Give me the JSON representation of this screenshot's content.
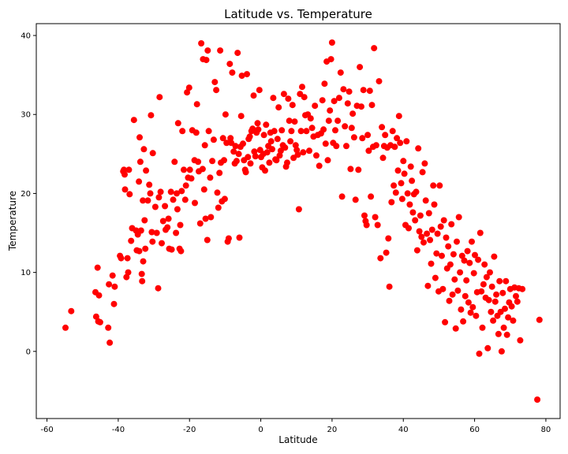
{
  "chart_data": {
    "type": "scatter",
    "title": "Latitude vs. Temperature",
    "xlabel": "Latitude",
    "ylabel": "Temperature",
    "xlim": [
      -63,
      84
    ],
    "ylim": [
      -8.5,
      41.5
    ],
    "xticks": [
      -60,
      -40,
      -20,
      0,
      20,
      40,
      60,
      80
    ],
    "yticks": [
      0,
      10,
      20,
      30,
      40
    ],
    "grid": false,
    "legend": "none",
    "marker_color": "#ff0000",
    "points": [
      [
        -54.8,
        3.0
      ],
      [
        -53.2,
        5.1
      ],
      [
        -46.4,
        7.5
      ],
      [
        -46.2,
        4.4
      ],
      [
        -45.8,
        10.6
      ],
      [
        -45.6,
        3.8
      ],
      [
        -45.4,
        7.1
      ],
      [
        -45.1,
        3.7
      ],
      [
        -42.8,
        3.0
      ],
      [
        -42.6,
        8.5
      ],
      [
        -42.4,
        1.1
      ],
      [
        -41.6,
        9.6
      ],
      [
        -41.2,
        6.0
      ],
      [
        -41.0,
        8.2
      ],
      [
        -39.5,
        12.1
      ],
      [
        -39.2,
        11.8
      ],
      [
        -38.6,
        22.8
      ],
      [
        -38.4,
        23.0
      ],
      [
        -38.2,
        22.4
      ],
      [
        -38.1,
        20.5
      ],
      [
        -37.7,
        9.4
      ],
      [
        -37.4,
        11.8
      ],
      [
        -37.2,
        10.0
      ],
      [
        -37.0,
        23.0
      ],
      [
        -36.8,
        19.9
      ],
      [
        -36.4,
        14.0
      ],
      [
        -36.1,
        15.6
      ],
      [
        -35.6,
        29.3
      ],
      [
        -35.0,
        15.3
      ],
      [
        -34.8,
        12.8
      ],
      [
        -34.5,
        14.8
      ],
      [
        -34.2,
        21.5
      ],
      [
        -34.1,
        12.7
      ],
      [
        -34.0,
        27.1
      ],
      [
        -33.8,
        24.0
      ],
      [
        -33.6,
        15.3
      ],
      [
        -33.4,
        9.8
      ],
      [
        -33.3,
        8.9
      ],
      [
        -33.1,
        19.1
      ],
      [
        -33.0,
        11.4
      ],
      [
        -32.8,
        25.6
      ],
      [
        -32.6,
        16.6
      ],
      [
        -32.4,
        13.0
      ],
      [
        -32.2,
        22.9
      ],
      [
        -31.7,
        19.1
      ],
      [
        -31.3,
        21.1
      ],
      [
        -31.0,
        20.0
      ],
      [
        -30.8,
        29.9
      ],
      [
        -30.6,
        15.1
      ],
      [
        -30.4,
        13.9
      ],
      [
        -30.3,
        25.1
      ],
      [
        -29.6,
        18.3
      ],
      [
        -29.2,
        15.0
      ],
      [
        -28.8,
        8.0
      ],
      [
        -28.6,
        19.5
      ],
      [
        -28.4,
        32.2
      ],
      [
        -28.1,
        20.2
      ],
      [
        -27.8,
        13.7
      ],
      [
        -27.4,
        16.5
      ],
      [
        -26.9,
        18.4
      ],
      [
        -26.7,
        15.4
      ],
      [
        -26.2,
        15.7
      ],
      [
        -25.9,
        16.8
      ],
      [
        -25.7,
        13.0
      ],
      [
        -25.2,
        20.2
      ],
      [
        -25.0,
        12.9
      ],
      [
        -24.6,
        19.2
      ],
      [
        -24.2,
        24.0
      ],
      [
        -23.8,
        15.0
      ],
      [
        -23.6,
        20.0
      ],
      [
        -23.4,
        18.0
      ],
      [
        -23.2,
        28.9
      ],
      [
        -22.8,
        13.0
      ],
      [
        -22.6,
        16.0
      ],
      [
        -22.4,
        12.7
      ],
      [
        -22.2,
        20.3
      ],
      [
        -22.0,
        27.9
      ],
      [
        -21.6,
        23.0
      ],
      [
        -21.2,
        19.2
      ],
      [
        -21.0,
        21.0
      ],
      [
        -20.7,
        32.8
      ],
      [
        -20.4,
        22.0
      ],
      [
        -20.1,
        33.4
      ],
      [
        -19.9,
        23.0
      ],
      [
        -19.5,
        21.9
      ],
      [
        -19.2,
        28.0
      ],
      [
        -18.6,
        24.2
      ],
      [
        -18.5,
        18.8
      ],
      [
        -18.1,
        27.7
      ],
      [
        -17.9,
        31.3
      ],
      [
        -17.6,
        24.0
      ],
      [
        -17.4,
        22.8
      ],
      [
        -17.0,
        16.2
      ],
      [
        -16.7,
        39.0
      ],
      [
        -16.3,
        23.1
      ],
      [
        -16.2,
        37.0
      ],
      [
        -15.9,
        20.5
      ],
      [
        -15.7,
        26.1
      ],
      [
        -15.5,
        16.8
      ],
      [
        -15.3,
        36.9
      ],
      [
        -15.0,
        14.1
      ],
      [
        -14.9,
        38.1
      ],
      [
        -14.6,
        27.9
      ],
      [
        -14.2,
        22.0
      ],
      [
        -14.0,
        17.0
      ],
      [
        -13.6,
        24.1
      ],
      [
        -13.2,
        26.8
      ],
      [
        -12.9,
        34.1
      ],
      [
        -12.5,
        33.1
      ],
      [
        -12.2,
        20.1
      ],
      [
        -11.9,
        18.2
      ],
      [
        -11.6,
        22.6
      ],
      [
        -11.4,
        38.1
      ],
      [
        -11.2,
        23.9
      ],
      [
        -10.9,
        19.0
      ],
      [
        -10.6,
        27.0
      ],
      [
        -10.3,
        24.2
      ],
      [
        -10.1,
        19.3
      ],
      [
        -9.9,
        30.0
      ],
      [
        -9.6,
        26.4
      ],
      [
        -9.3,
        13.9
      ],
      [
        -9.0,
        14.3
      ],
      [
        -8.7,
        36.4
      ],
      [
        -8.5,
        27.0
      ],
      [
        -8.3,
        26.4
      ],
      [
        -8.0,
        35.3
      ],
      [
        -7.6,
        25.3
      ],
      [
        -7.3,
        23.8
      ],
      [
        -7.1,
        26.0
      ],
      [
        -6.8,
        24.1
      ],
      [
        -6.5,
        37.8
      ],
      [
        -6.2,
        25.0
      ],
      [
        -6.0,
        14.4
      ],
      [
        -5.7,
        25.9
      ],
      [
        -5.5,
        29.8
      ],
      [
        -5.3,
        34.9
      ],
      [
        -5.0,
        26.3
      ],
      [
        -4.7,
        24.2
      ],
      [
        -4.4,
        23.0
      ],
      [
        -4.2,
        22.7
      ],
      [
        -3.9,
        35.1
      ],
      [
        -3.6,
        24.6
      ],
      [
        -3.4,
        26.9
      ],
      [
        -3.1,
        27.2
      ],
      [
        -2.9,
        23.8
      ],
      [
        -2.6,
        27.9
      ],
      [
        -2.3,
        28.2
      ],
      [
        -2.0,
        32.4
      ],
      [
        -1.8,
        25.3
      ],
      [
        -1.5,
        24.7
      ],
      [
        -1.2,
        27.7
      ],
      [
        -0.9,
        28.9
      ],
      [
        -0.7,
        28.1
      ],
      [
        -0.4,
        33.1
      ],
      [
        -0.2,
        25.5
      ],
      [
        0.1,
        24.6
      ],
      [
        0.4,
        23.3
      ],
      [
        0.7,
        25.0
      ],
      [
        0.9,
        27.4
      ],
      [
        1.2,
        22.9
      ],
      [
        1.5,
        28.7
      ],
      [
        1.8,
        25.2
      ],
      [
        2.1,
        26.0
      ],
      [
        2.4,
        23.9
      ],
      [
        2.7,
        27.7
      ],
      [
        2.9,
        26.6
      ],
      [
        3.2,
        25.6
      ],
      [
        3.5,
        32.1
      ],
      [
        3.8,
        27.9
      ],
      [
        4.1,
        24.3
      ],
      [
        4.4,
        24.2
      ],
      [
        4.7,
        26.9
      ],
      [
        5.0,
        30.9
      ],
      [
        5.3,
        24.8
      ],
      [
        5.6,
        25.4
      ],
      [
        5.9,
        28.0
      ],
      [
        6.2,
        26.1
      ],
      [
        6.5,
        32.6
      ],
      [
        6.8,
        25.8
      ],
      [
        7.1,
        23.4
      ],
      [
        7.4,
        23.9
      ],
      [
        7.7,
        32.0
      ],
      [
        8.0,
        29.2
      ],
      [
        8.3,
        26.6
      ],
      [
        8.6,
        27.9
      ],
      [
        8.9,
        31.2
      ],
      [
        9.2,
        24.5
      ],
      [
        9.5,
        29.1
      ],
      [
        9.8,
        26.1
      ],
      [
        10.1,
        25.5
      ],
      [
        10.4,
        24.9
      ],
      [
        10.7,
        18.0
      ],
      [
        11.0,
        32.6
      ],
      [
        11.3,
        27.9
      ],
      [
        11.6,
        33.5
      ],
      [
        11.9,
        25.2
      ],
      [
        12.2,
        32.2
      ],
      [
        12.5,
        29.9
      ],
      [
        12.8,
        27.9
      ],
      [
        13.2,
        30.0
      ],
      [
        13.6,
        25.4
      ],
      [
        14.0,
        29.5
      ],
      [
        14.4,
        28.3
      ],
      [
        14.8,
        27.2
      ],
      [
        15.2,
        31.1
      ],
      [
        15.6,
        24.8
      ],
      [
        16.0,
        27.4
      ],
      [
        16.4,
        23.5
      ],
      [
        16.9,
        27.6
      ],
      [
        17.3,
        31.8
      ],
      [
        17.6,
        28.1
      ],
      [
        17.9,
        33.9
      ],
      [
        18.2,
        26.3
      ],
      [
        18.5,
        36.7
      ],
      [
        18.8,
        24.2
      ],
      [
        19.1,
        29.2
      ],
      [
        19.4,
        30.5
      ],
      [
        19.7,
        37.0
      ],
      [
        20.0,
        39.1
      ],
      [
        20.3,
        26.4
      ],
      [
        20.6,
        31.7
      ],
      [
        20.9,
        28.0
      ],
      [
        21.2,
        26.0
      ],
      [
        21.6,
        29.2
      ],
      [
        22.0,
        32.1
      ],
      [
        22.4,
        35.3
      ],
      [
        22.8,
        19.6
      ],
      [
        23.2,
        33.2
      ],
      [
        23.6,
        28.5
      ],
      [
        24.0,
        26.0
      ],
      [
        24.4,
        31.4
      ],
      [
        24.8,
        32.9
      ],
      [
        25.2,
        23.1
      ],
      [
        25.5,
        28.3
      ],
      [
        25.8,
        30.1
      ],
      [
        26.2,
        27.1
      ],
      [
        26.6,
        19.2
      ],
      [
        27.0,
        31.1
      ],
      [
        27.4,
        23.0
      ],
      [
        27.8,
        36.0
      ],
      [
        28.2,
        31.0
      ],
      [
        28.5,
        27.0
      ],
      [
        28.8,
        33.1
      ],
      [
        29.1,
        17.2
      ],
      [
        29.4,
        16.5
      ],
      [
        29.7,
        16.0
      ],
      [
        30.0,
        27.4
      ],
      [
        30.3,
        25.4
      ],
      [
        30.6,
        33.0
      ],
      [
        30.9,
        19.6
      ],
      [
        31.2,
        31.2
      ],
      [
        31.5,
        25.9
      ],
      [
        31.8,
        38.4
      ],
      [
        32.1,
        17.0
      ],
      [
        32.4,
        26.1
      ],
      [
        32.8,
        16.0
      ],
      [
        33.2,
        34.2
      ],
      [
        33.6,
        11.8
      ],
      [
        34.0,
        28.4
      ],
      [
        34.3,
        24.5
      ],
      [
        34.6,
        26.0
      ],
      [
        34.9,
        27.4
      ],
      [
        35.2,
        12.5
      ],
      [
        35.5,
        25.8
      ],
      [
        35.8,
        14.3
      ],
      [
        36.1,
        8.2
      ],
      [
        36.4,
        26.1
      ],
      [
        36.7,
        18.9
      ],
      [
        37.0,
        27.9
      ],
      [
        37.3,
        21.0
      ],
      [
        37.6,
        25.9
      ],
      [
        37.9,
        20.1
      ],
      [
        38.2,
        27.0
      ],
      [
        38.5,
        22.9
      ],
      [
        38.8,
        29.8
      ],
      [
        39.1,
        26.4
      ],
      [
        39.4,
        21.3
      ],
      [
        39.7,
        19.3
      ],
      [
        40.0,
        24.1
      ],
      [
        40.3,
        22.5
      ],
      [
        40.6,
        16.0
      ],
      [
        40.9,
        26.6
      ],
      [
        41.2,
        20.0
      ],
      [
        41.5,
        15.6
      ],
      [
        41.8,
        18.6
      ],
      [
        42.1,
        23.4
      ],
      [
        42.4,
        21.6
      ],
      [
        42.7,
        17.6
      ],
      [
        43.0,
        19.9
      ],
      [
        43.3,
        16.6
      ],
      [
        43.6,
        20.2
      ],
      [
        43.9,
        12.8
      ],
      [
        44.2,
        25.7
      ],
      [
        44.5,
        15.2
      ],
      [
        44.8,
        17.2
      ],
      [
        45.1,
        14.5
      ],
      [
        45.4,
        22.7
      ],
      [
        45.7,
        13.8
      ],
      [
        46.0,
        23.8
      ],
      [
        46.3,
        19.1
      ],
      [
        46.6,
        14.9
      ],
      [
        46.9,
        8.3
      ],
      [
        47.2,
        17.5
      ],
      [
        47.5,
        14.1
      ],
      [
        47.8,
        11.1
      ],
      [
        48.1,
        15.4
      ],
      [
        48.4,
        21.0
      ],
      [
        48.7,
        18.6
      ],
      [
        49.0,
        9.3
      ],
      [
        49.3,
        12.4
      ],
      [
        49.6,
        14.9
      ],
      [
        49.9,
        7.6
      ],
      [
        50.2,
        21.0
      ],
      [
        50.5,
        15.8
      ],
      [
        50.8,
        12.1
      ],
      [
        51.1,
        7.9
      ],
      [
        51.4,
        16.6
      ],
      [
        51.7,
        3.7
      ],
      [
        52.0,
        14.4
      ],
      [
        52.3,
        10.5
      ],
      [
        52.6,
        13.3
      ],
      [
        52.9,
        6.4
      ],
      [
        53.2,
        11.0
      ],
      [
        53.5,
        16.1
      ],
      [
        53.8,
        7.2
      ],
      [
        54.1,
        12.3
      ],
      [
        54.4,
        9.1
      ],
      [
        54.7,
        2.9
      ],
      [
        55.0,
        13.9
      ],
      [
        55.3,
        7.7
      ],
      [
        55.6,
        17.0
      ],
      [
        55.9,
        10.0
      ],
      [
        56.2,
        5.3
      ],
      [
        56.5,
        12.1
      ],
      [
        56.8,
        3.8
      ],
      [
        57.1,
        11.5
      ],
      [
        57.4,
        7.0
      ],
      [
        57.7,
        9.0
      ],
      [
        58.0,
        12.7
      ],
      [
        58.3,
        6.2
      ],
      [
        58.6,
        11.2
      ],
      [
        58.9,
        4.9
      ],
      [
        59.2,
        13.9
      ],
      [
        59.5,
        5.6
      ],
      [
        59.8,
        9.9
      ],
      [
        60.1,
        12.2
      ],
      [
        60.4,
        4.5
      ],
      [
        60.7,
        7.5
      ],
      [
        61.0,
        11.6
      ],
      [
        61.3,
        -0.3
      ],
      [
        61.6,
        15.0
      ],
      [
        61.9,
        7.6
      ],
      [
        62.2,
        3.0
      ],
      [
        62.5,
        8.5
      ],
      [
        62.8,
        11.0
      ],
      [
        63.1,
        6.8
      ],
      [
        63.4,
        9.4
      ],
      [
        63.7,
        0.4
      ],
      [
        64.0,
        6.5
      ],
      [
        64.3,
        10.0
      ],
      [
        64.6,
        5.0
      ],
      [
        64.9,
        8.2
      ],
      [
        65.2,
        3.9
      ],
      [
        65.5,
        12.0
      ],
      [
        65.8,
        6.3
      ],
      [
        66.1,
        7.2
      ],
      [
        66.4,
        4.5
      ],
      [
        66.7,
        2.2
      ],
      [
        67.0,
        8.9
      ],
      [
        67.3,
        5.0
      ],
      [
        67.6,
        0.0
      ],
      [
        67.9,
        7.4
      ],
      [
        68.2,
        3.0
      ],
      [
        68.5,
        5.4
      ],
      [
        68.8,
        8.9
      ],
      [
        69.1,
        2.1
      ],
      [
        69.4,
        4.3
      ],
      [
        69.7,
        6.2
      ],
      [
        70.0,
        7.9
      ],
      [
        70.4,
        5.7
      ],
      [
        70.8,
        3.9
      ],
      [
        71.2,
        8.1
      ],
      [
        71.6,
        7.0
      ],
      [
        72.0,
        6.3
      ],
      [
        72.4,
        8.0
      ],
      [
        72.8,
        1.4
      ],
      [
        73.4,
        7.9
      ],
      [
        77.6,
        -6.1
      ],
      [
        78.2,
        4.0
      ]
    ]
  }
}
